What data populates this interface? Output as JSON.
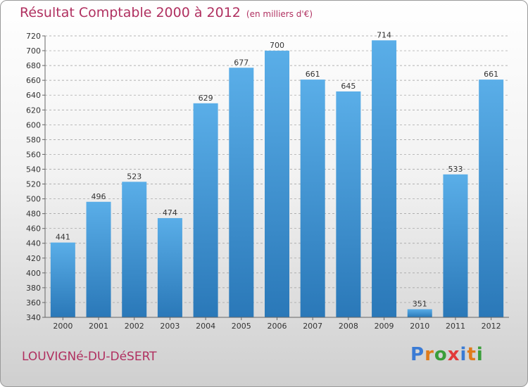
{
  "title": "Résultat Comptable 2000 à 2012",
  "subtitle": "(en milliers d'€)",
  "commune": "LOUVIGNé-DU-DéSERT",
  "logo": {
    "text": "Proxiti",
    "letter_colors": [
      "#3a7bd5",
      "#e07b1a",
      "#3a9e3a",
      "#e23a3a",
      "#3a7bd5",
      "#e07b1a",
      "#3a9e3a"
    ]
  },
  "colors": {
    "title": "#b03060",
    "bar_top": "#5aaee8",
    "bar_bottom": "#2a78b8",
    "grid": "#9a9a9a",
    "label": "#333333"
  },
  "chart_data": {
    "type": "bar",
    "title": "Résultat Comptable 2000 à 2012",
    "xlabel": "",
    "ylabel": "",
    "categories": [
      "2000",
      "2001",
      "2002",
      "2003",
      "2004",
      "2005",
      "2006",
      "2007",
      "2008",
      "2009",
      "2010",
      "2011",
      "2012"
    ],
    "values": [
      441,
      496,
      523,
      474,
      629,
      677,
      700,
      661,
      645,
      714,
      351,
      533,
      661
    ],
    "ylim": [
      340,
      720
    ],
    "yticks": [
      340,
      360,
      380,
      400,
      420,
      440,
      460,
      480,
      500,
      520,
      540,
      560,
      580,
      600,
      620,
      640,
      660,
      680,
      700,
      720
    ],
    "grid": true,
    "grid_style": "dashed horizontal"
  }
}
